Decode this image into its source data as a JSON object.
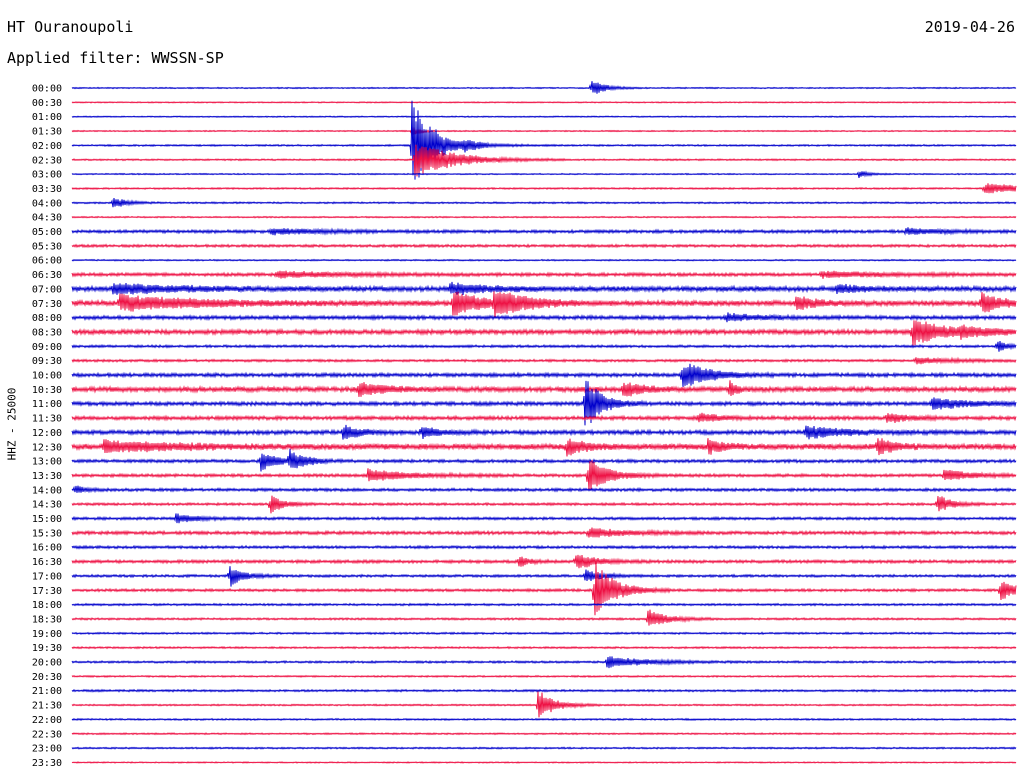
{
  "header": {
    "station": "HT Ouranoupoli",
    "date": "2019-04-26",
    "filter": "Applied filter: WWSSN-SP"
  },
  "chart_data": {
    "type": "line",
    "title": "",
    "ylabel": "HHZ - 25000",
    "xlabel": "",
    "trace_colors": [
      "#0000cc",
      "#ee1144"
    ],
    "rows": [
      "00:00",
      "00:30",
      "01:00",
      "01:30",
      "02:00",
      "02:30",
      "03:00",
      "03:30",
      "04:00",
      "04:30",
      "05:00",
      "05:30",
      "06:00",
      "06:30",
      "07:00",
      "07:30",
      "08:00",
      "08:30",
      "09:00",
      "09:30",
      "10:00",
      "10:30",
      "11:00",
      "11:30",
      "12:00",
      "12:30",
      "13:00",
      "13:30",
      "14:00",
      "14:30",
      "15:00",
      "15:30",
      "16:00",
      "16:30",
      "17:00",
      "17:30",
      "18:00",
      "18:30",
      "19:00",
      "19:30",
      "20:00",
      "20:30",
      "21:00",
      "21:30",
      "22:00",
      "22:30",
      "23:00",
      "23:30"
    ],
    "noise_level": [
      0.6,
      0.6,
      0.6,
      0.6,
      0.8,
      0.8,
      0.6,
      0.8,
      0.8,
      0.7,
      1.5,
      1.3,
      0.7,
      1.6,
      2.5,
      2.5,
      1.8,
      2.2,
      1.2,
      1.2,
      1.8,
      2.4,
      1.8,
      1.8,
      2.0,
      2.8,
      1.5,
      1.5,
      1.4,
      1.2,
      1.3,
      1.6,
      1.3,
      1.5,
      1.2,
      1.3,
      1.0,
      1.0,
      0.9,
      0.9,
      1.0,
      0.8,
      1.0,
      0.8,
      0.8,
      0.8,
      0.8,
      0.6
    ],
    "events": [
      {
        "row": 0,
        "minute": 16.5,
        "amp": 9,
        "dur": 0.4
      },
      {
        "row": 3,
        "minute": 10.8,
        "amp": 6,
        "dur": 0.2
      },
      {
        "row": 4,
        "minute": 10.8,
        "amp": 55,
        "dur": 0.6
      },
      {
        "row": 5,
        "minute": 10.9,
        "amp": 18,
        "dur": 1.2
      },
      {
        "row": 4,
        "minute": 12.4,
        "amp": 4,
        "dur": 0.8
      },
      {
        "row": 6,
        "minute": 25.0,
        "amp": 4,
        "dur": 0.3
      },
      {
        "row": 7,
        "minute": 29.0,
        "amp": 5,
        "dur": 1.5
      },
      {
        "row": 8,
        "minute": 1.3,
        "amp": 6,
        "dur": 0.4
      },
      {
        "row": 10,
        "minute": 6.3,
        "amp": 3,
        "dur": 1.5
      },
      {
        "row": 10,
        "minute": 26.5,
        "amp": 3,
        "dur": 1.2
      },
      {
        "row": 13,
        "minute": 6.5,
        "amp": 3,
        "dur": 2.0
      },
      {
        "row": 13,
        "minute": 23.8,
        "amp": 3,
        "dur": 2.0
      },
      {
        "row": 14,
        "minute": 1.3,
        "amp": 5,
        "dur": 2.0
      },
      {
        "row": 14,
        "minute": 12.0,
        "amp": 5,
        "dur": 1.2
      },
      {
        "row": 14,
        "minute": 24.3,
        "amp": 4,
        "dur": 0.8
      },
      {
        "row": 15,
        "minute": 1.5,
        "amp": 8,
        "dur": 2.5
      },
      {
        "row": 15,
        "minute": 12.1,
        "amp": 12,
        "dur": 1.0
      },
      {
        "row": 15,
        "minute": 13.4,
        "amp": 12,
        "dur": 1.0
      },
      {
        "row": 15,
        "minute": 23.0,
        "amp": 8,
        "dur": 0.6
      },
      {
        "row": 15,
        "minute": 28.9,
        "amp": 10,
        "dur": 0.6
      },
      {
        "row": 16,
        "minute": 20.8,
        "amp": 4,
        "dur": 1.0
      },
      {
        "row": 17,
        "minute": 26.7,
        "amp": 14,
        "dur": 1.0
      },
      {
        "row": 17,
        "minute": 28.2,
        "amp": 4,
        "dur": 1.0
      },
      {
        "row": 18,
        "minute": 29.4,
        "amp": 6,
        "dur": 0.3
      },
      {
        "row": 19,
        "minute": 26.8,
        "amp": 3,
        "dur": 1.2
      },
      {
        "row": 20,
        "minute": 19.4,
        "amp": 14,
        "dur": 0.8
      },
      {
        "row": 21,
        "minute": 9.1,
        "amp": 7,
        "dur": 0.8
      },
      {
        "row": 21,
        "minute": 17.5,
        "amp": 8,
        "dur": 0.6
      },
      {
        "row": 21,
        "minute": 20.9,
        "amp": 10,
        "dur": 0.2
      },
      {
        "row": 22,
        "minute": 16.3,
        "amp": 28,
        "dur": 0.5
      },
      {
        "row": 22,
        "minute": 27.3,
        "amp": 6,
        "dur": 1.2
      },
      {
        "row": 23,
        "minute": 19.9,
        "amp": 5,
        "dur": 0.6
      },
      {
        "row": 23,
        "minute": 25.9,
        "amp": 5,
        "dur": 0.6
      },
      {
        "row": 24,
        "minute": 8.6,
        "amp": 8,
        "dur": 0.5
      },
      {
        "row": 24,
        "minute": 11.1,
        "amp": 6,
        "dur": 0.5
      },
      {
        "row": 24,
        "minute": 23.3,
        "amp": 6,
        "dur": 1.2
      },
      {
        "row": 25,
        "minute": 1.0,
        "amp": 6,
        "dur": 2.2
      },
      {
        "row": 25,
        "minute": 15.7,
        "amp": 8,
        "dur": 0.6
      },
      {
        "row": 25,
        "minute": 20.2,
        "amp": 7,
        "dur": 0.5
      },
      {
        "row": 25,
        "minute": 25.6,
        "amp": 8,
        "dur": 0.5
      },
      {
        "row": 26,
        "minute": 6.0,
        "amp": 10,
        "dur": 0.5
      },
      {
        "row": 26,
        "minute": 6.9,
        "amp": 10,
        "dur": 0.5
      },
      {
        "row": 27,
        "minute": 9.4,
        "amp": 6,
        "dur": 1.2
      },
      {
        "row": 27,
        "minute": 16.4,
        "amp": 18,
        "dur": 0.6
      },
      {
        "row": 27,
        "minute": 27.7,
        "amp": 6,
        "dur": 0.8
      },
      {
        "row": 28,
        "minute": 0.1,
        "amp": 4,
        "dur": 0.3
      },
      {
        "row": 29,
        "minute": 6.3,
        "amp": 10,
        "dur": 0.4
      },
      {
        "row": 29,
        "minute": 27.5,
        "amp": 10,
        "dur": 0.4
      },
      {
        "row": 30,
        "minute": 3.3,
        "amp": 5,
        "dur": 0.6
      },
      {
        "row": 31,
        "minute": 16.4,
        "amp": 5,
        "dur": 1.0
      },
      {
        "row": 33,
        "minute": 16.0,
        "amp": 8,
        "dur": 0.6
      },
      {
        "row": 33,
        "minute": 14.2,
        "amp": 6,
        "dur": 0.3
      },
      {
        "row": 34,
        "minute": 5.0,
        "amp": 12,
        "dur": 0.4
      },
      {
        "row": 34,
        "minute": 16.3,
        "amp": 6,
        "dur": 0.6
      },
      {
        "row": 35,
        "minute": 16.6,
        "amp": 30,
        "dur": 0.6
      },
      {
        "row": 35,
        "minute": 29.5,
        "amp": 10,
        "dur": 0.5
      },
      {
        "row": 37,
        "minute": 18.3,
        "amp": 10,
        "dur": 0.6
      },
      {
        "row": 40,
        "minute": 17.0,
        "amp": 6,
        "dur": 1.2
      },
      {
        "row": 43,
        "minute": 14.8,
        "amp": 16,
        "dur": 0.5
      }
    ]
  }
}
